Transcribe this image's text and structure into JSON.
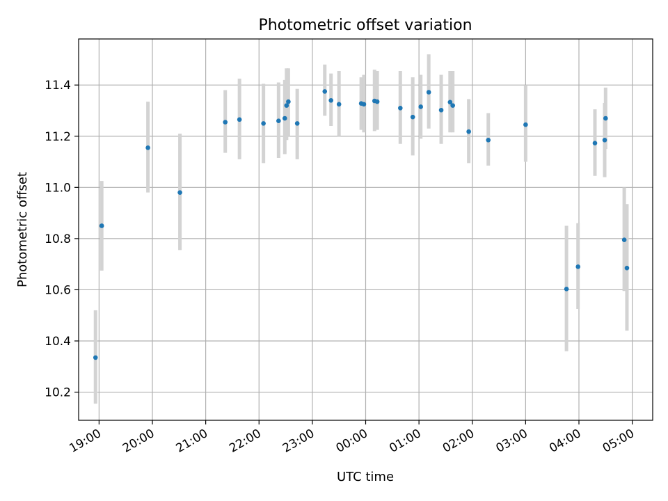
{
  "chart_data": {
    "type": "scatter",
    "title": "Photometric offset variation",
    "xlabel": "UTC time",
    "ylabel": "Photometric offset",
    "ylim": [
      10.09,
      11.58
    ],
    "xlim": [
      "18:37",
      "05:23"
    ],
    "x_ticks": [
      "19:00",
      "20:00",
      "21:00",
      "22:00",
      "23:00",
      "00:00",
      "01:00",
      "02:00",
      "03:00",
      "04:00",
      "05:00"
    ],
    "y_ticks": [
      10.2,
      10.4,
      10.6,
      10.8,
      11.0,
      11.2,
      11.4
    ],
    "grid": true,
    "colors": {
      "marker": "#1f77b4",
      "errorbar": "#d3d3d3"
    },
    "series": [
      {
        "points": [
          {
            "x": "18:56",
            "y": 10.335,
            "ylow": 10.155,
            "yhigh": 10.52
          },
          {
            "x": "19:03",
            "y": 10.85,
            "ylow": 10.675,
            "yhigh": 11.025
          },
          {
            "x": "19:55",
            "y": 11.155,
            "ylow": 10.98,
            "yhigh": 11.335
          },
          {
            "x": "20:31",
            "y": 10.98,
            "ylow": 10.755,
            "yhigh": 11.21
          },
          {
            "x": "21:22",
            "y": 11.255,
            "ylow": 11.135,
            "yhigh": 11.38
          },
          {
            "x": "21:38",
            "y": 11.265,
            "ylow": 11.11,
            "yhigh": 11.425
          },
          {
            "x": "22:05",
            "y": 11.25,
            "ylow": 11.095,
            "yhigh": 11.405
          },
          {
            "x": "22:22",
            "y": 11.26,
            "ylow": 11.115,
            "yhigh": 11.41
          },
          {
            "x": "22:29",
            "y": 11.27,
            "ylow": 11.13,
            "yhigh": 11.42
          },
          {
            "x": "22:31",
            "y": 11.32,
            "ylow": 11.185,
            "yhigh": 11.465
          },
          {
            "x": "22:33",
            "y": 11.335,
            "ylow": 11.2,
            "yhigh": 11.465
          },
          {
            "x": "22:43",
            "y": 11.25,
            "ylow": 11.11,
            "yhigh": 11.385
          },
          {
            "x": "23:14",
            "y": 11.375,
            "ylow": 11.28,
            "yhigh": 11.48
          },
          {
            "x": "23:21",
            "y": 11.34,
            "ylow": 11.24,
            "yhigh": 11.445
          },
          {
            "x": "23:30",
            "y": 11.325,
            "ylow": 11.2,
            "yhigh": 11.455
          },
          {
            "x": "23:55",
            "y": 11.328,
            "ylow": 11.225,
            "yhigh": 11.43
          },
          {
            "x": "23:58",
            "y": 11.325,
            "ylow": 11.215,
            "yhigh": 11.44
          },
          {
            "x": "00:10",
            "y": 11.338,
            "ylow": 11.22,
            "yhigh": 11.46
          },
          {
            "x": "00:13",
            "y": 11.335,
            "ylow": 11.225,
            "yhigh": 11.455
          },
          {
            "x": "00:39",
            "y": 11.31,
            "ylow": 11.17,
            "yhigh": 11.455
          },
          {
            "x": "00:53",
            "y": 11.275,
            "ylow": 11.125,
            "yhigh": 11.43
          },
          {
            "x": "01:02",
            "y": 11.315,
            "ylow": 11.19,
            "yhigh": 11.44
          },
          {
            "x": "01:11",
            "y": 11.372,
            "ylow": 11.23,
            "yhigh": 11.52
          },
          {
            "x": "01:25",
            "y": 11.302,
            "ylow": 11.17,
            "yhigh": 11.44
          },
          {
            "x": "01:35",
            "y": 11.333,
            "ylow": 11.215,
            "yhigh": 11.455
          },
          {
            "x": "01:38",
            "y": 11.32,
            "ylow": 11.215,
            "yhigh": 11.455
          },
          {
            "x": "01:56",
            "y": 11.218,
            "ylow": 11.095,
            "yhigh": 11.345
          },
          {
            "x": "02:18",
            "y": 11.185,
            "ylow": 11.085,
            "yhigh": 11.29
          },
          {
            "x": "03:00",
            "y": 11.245,
            "ylow": 11.1,
            "yhigh": 11.4
          },
          {
            "x": "03:46",
            "y": 10.603,
            "ylow": 10.36,
            "yhigh": 10.85
          },
          {
            "x": "03:59",
            "y": 10.69,
            "ylow": 10.525,
            "yhigh": 10.86
          },
          {
            "x": "04:18",
            "y": 11.173,
            "ylow": 11.045,
            "yhigh": 11.305
          },
          {
            "x": "04:29",
            "y": 11.185,
            "ylow": 11.04,
            "yhigh": 11.33
          },
          {
            "x": "04:30",
            "y": 11.27,
            "ylow": 11.15,
            "yhigh": 11.39
          },
          {
            "x": "04:51",
            "y": 10.795,
            "ylow": 10.595,
            "yhigh": 11.0
          },
          {
            "x": "04:54",
            "y": 10.685,
            "ylow": 10.44,
            "yhigh": 10.935
          }
        ]
      }
    ]
  }
}
